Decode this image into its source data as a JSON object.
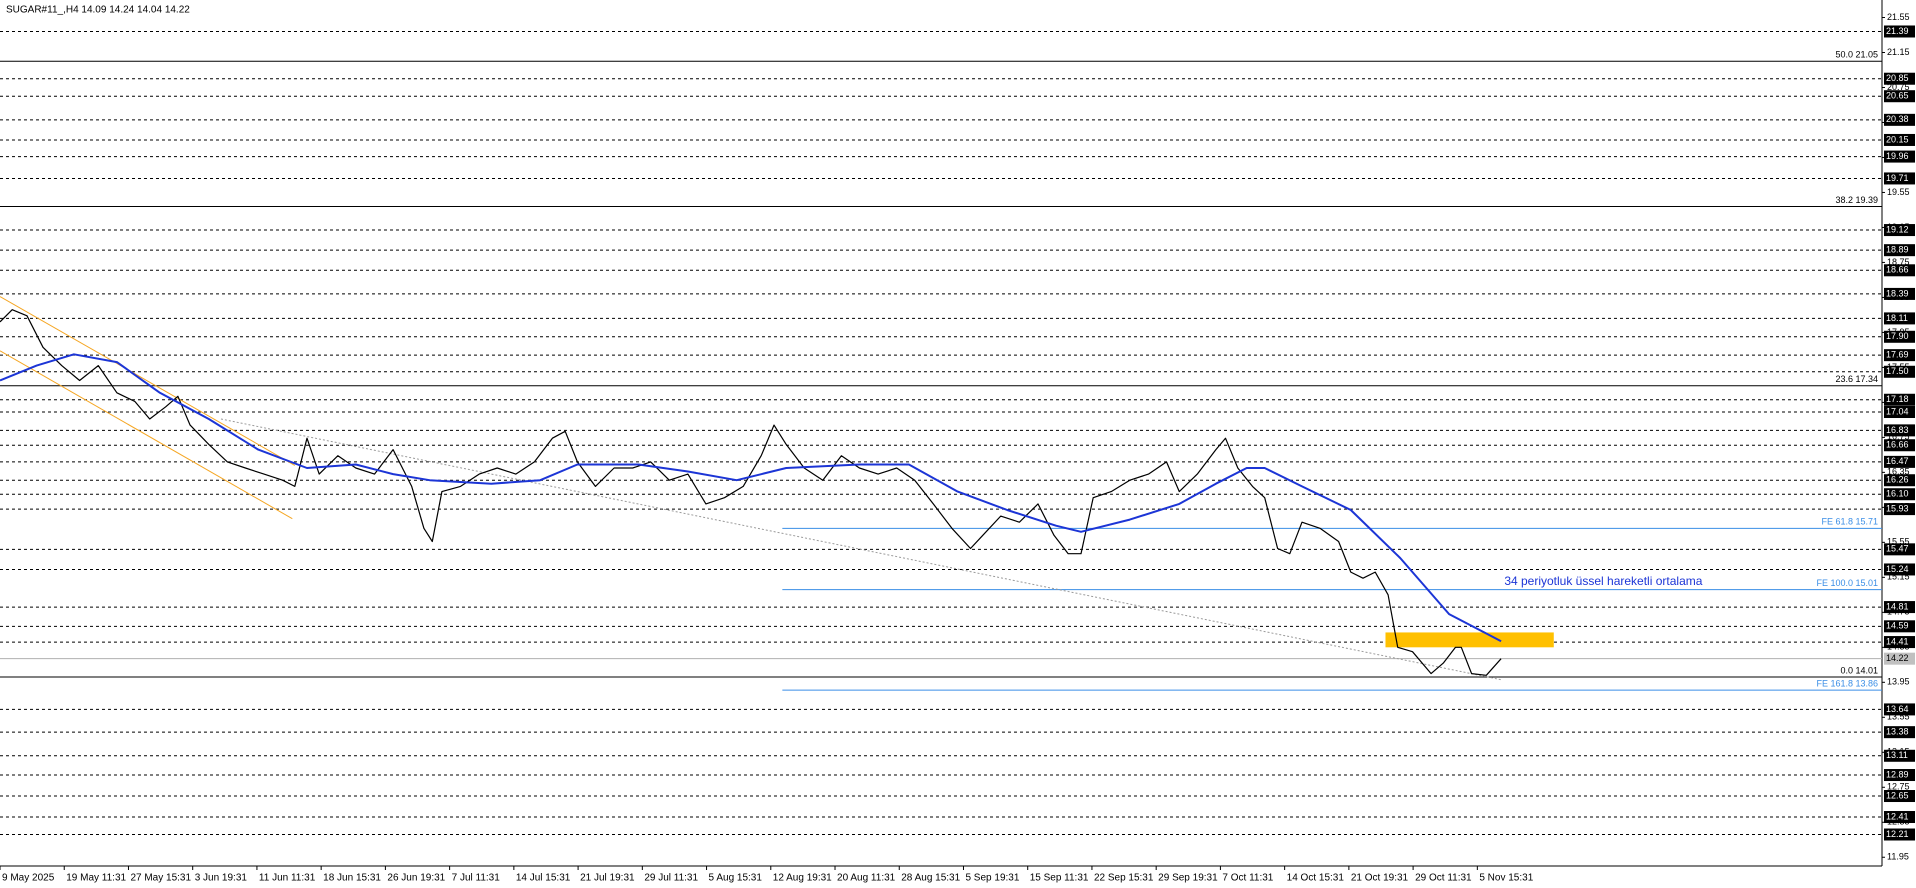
{
  "chart_data": {
    "type": "line",
    "title": "SUGAR#11_,H4  14.09 14.24 14.04 14.22",
    "xlim": [
      0,
      29.3
    ],
    "xticks": [
      {
        "value": 0,
        "label": "9 May 2025"
      },
      {
        "value": 1,
        "label": "19 May 11:31"
      },
      {
        "value": 2,
        "label": "27 May 15:31"
      },
      {
        "value": 3,
        "label": "3 Jun 19:31"
      },
      {
        "value": 4,
        "label": "11 Jun 11:31"
      },
      {
        "value": 5,
        "label": "18 Jun 15:31"
      },
      {
        "value": 6,
        "label": "26 Jun 19:31"
      },
      {
        "value": 7,
        "label": "7 Jul 11:31"
      },
      {
        "value": 8,
        "label": "14 Jul 15:31"
      },
      {
        "value": 9,
        "label": "21 Jul 19:31"
      },
      {
        "value": 10,
        "label": "29 Jul 11:31"
      },
      {
        "value": 11,
        "label": "5 Aug 15:31"
      },
      {
        "value": 12,
        "label": "12 Aug 19:31"
      },
      {
        "value": 13,
        "label": "20 Aug 11:31"
      },
      {
        "value": 14,
        "label": "28 Aug 15:31"
      },
      {
        "value": 15,
        "label": "5 Sep 19:31"
      },
      {
        "value": 16,
        "label": "15 Sep 11:31"
      },
      {
        "value": 17,
        "label": "22 Sep 15:31"
      },
      {
        "value": 18,
        "label": "29 Sep 19:31"
      },
      {
        "value": 19,
        "label": "7 Oct 11:31"
      },
      {
        "value": 20,
        "label": "14 Oct 15:31"
      },
      {
        "value": 21,
        "label": "21 Oct 19:31"
      },
      {
        "value": 22,
        "label": "29 Oct 11:31"
      },
      {
        "value": 23,
        "label": "5 Nov 15:31"
      }
    ],
    "ylim": [
      11.85,
      21.75
    ],
    "yticks": [
      21.55,
      21.15,
      20.75,
      20.35,
      19.95,
      19.55,
      19.15,
      18.75,
      18.35,
      17.95,
      17.55,
      17.15,
      16.75,
      16.35,
      15.95,
      15.55,
      15.15,
      14.75,
      14.35,
      13.95,
      13.55,
      13.15,
      12.75,
      12.35,
      11.95
    ],
    "grid": false,
    "series": [
      {
        "color": "#000000",
        "x": [
          0,
          0.19,
          0.42,
          0.67,
          0.96,
          1.24,
          1.53,
          1.82,
          2.1,
          2.33,
          2.58,
          2.77,
          2.96,
          3.25,
          3.54,
          3.82,
          4.11,
          4.4,
          4.59,
          4.78,
          4.97,
          5.26,
          5.54,
          5.83,
          6.12,
          6.41,
          6.6,
          6.73,
          6.88,
          7.17,
          7.46,
          7.74,
          8.03,
          8.32,
          8.6,
          8.8,
          8.99,
          9.27,
          9.56,
          9.85,
          10.13,
          10.42,
          10.71,
          10.99,
          11.28,
          11.57,
          11.85,
          12.05,
          12.24,
          12.52,
          12.81,
          13.1,
          13.38,
          13.67,
          13.96,
          14.24,
          14.53,
          14.82,
          15.11,
          15.3,
          15.58,
          15.87,
          16.16,
          16.41,
          16.63,
          16.83,
          17.02,
          17.3,
          17.59,
          17.88,
          18.16,
          18.36,
          18.64,
          18.93,
          19.08,
          19.27,
          19.5,
          19.69,
          19.89,
          20.08,
          20.27,
          20.55,
          20.84,
          21.03,
          21.22,
          21.41,
          21.61,
          21.76,
          21.99,
          22.28,
          22.47,
          22.66,
          22.75,
          22.91,
          23.14,
          23.37
        ],
        "values": [
          18.07,
          18.21,
          18.14,
          17.78,
          17.57,
          17.4,
          17.57,
          17.26,
          17.16,
          16.96,
          17.1,
          17.22,
          16.89,
          16.67,
          16.47,
          16.4,
          16.33,
          16.26,
          16.19,
          16.74,
          16.33,
          16.54,
          16.4,
          16.33,
          16.61,
          16.19,
          15.71,
          15.56,
          16.13,
          16.19,
          16.33,
          16.4,
          16.33,
          16.47,
          16.74,
          16.82,
          16.47,
          16.19,
          16.4,
          16.4,
          16.47,
          16.26,
          16.33,
          15.99,
          16.06,
          16.19,
          16.54,
          16.89,
          16.67,
          16.4,
          16.26,
          16.54,
          16.4,
          16.33,
          16.4,
          16.26,
          15.99,
          15.71,
          15.48,
          15.63,
          15.85,
          15.78,
          15.99,
          15.63,
          15.42,
          15.42,
          16.06,
          16.13,
          16.26,
          16.33,
          16.47,
          16.13,
          16.33,
          16.61,
          16.74,
          16.4,
          16.19,
          16.06,
          15.48,
          15.42,
          15.78,
          15.71,
          15.56,
          15.21,
          15.14,
          15.21,
          14.95,
          14.35,
          14.3,
          14.05,
          14.17,
          14.35,
          14.35,
          14.05,
          14.03,
          14.22
        ]
      },
      {
        "color": "#1c35d6",
        "x": [
          0,
          0.57,
          1.15,
          1.82,
          2.49,
          3.25,
          4.02,
          4.78,
          5.54,
          6.12,
          6.69,
          7.65,
          8.41,
          8.99,
          9.94,
          10.71,
          11.47,
          12.24,
          13.38,
          14.15,
          14.91,
          15.68,
          16.44,
          16.83,
          17.59,
          18.36,
          18.93,
          19.41,
          19.69,
          20.27,
          21.03,
          21.8,
          22.56,
          23.37
        ],
        "values": [
          17.4,
          17.57,
          17.7,
          17.61,
          17.26,
          16.96,
          16.61,
          16.4,
          16.44,
          16.33,
          16.26,
          16.22,
          16.26,
          16.44,
          16.44,
          16.36,
          16.26,
          16.4,
          16.44,
          16.44,
          16.13,
          15.92,
          15.74,
          15.67,
          15.81,
          15.99,
          16.22,
          16.4,
          16.4,
          16.19,
          15.92,
          15.37,
          14.73,
          14.42
        ]
      }
    ],
    "levels": [
      21.39,
      20.85,
      20.65,
      20.38,
      20.15,
      19.96,
      19.71,
      19.12,
      18.89,
      18.66,
      18.39,
      18.11,
      {
        "value": 17.9,
        "label": "17.90"
      },
      17.69,
      {
        "value": 17.5,
        "label": "17.50"
      },
      17.18,
      17.04,
      16.83,
      16.66,
      16.47,
      16.26,
      {
        "value": 16.1,
        "label": "16.10"
      },
      15.93,
      15.47,
      15.24,
      14.81,
      14.59,
      14.41,
      13.64,
      13.38,
      13.11,
      12.89,
      12.65,
      12.41,
      12.21
    ],
    "current_price": 14.22,
    "fibo": [
      {
        "label": "50.0 21.05",
        "value": 21.05
      },
      {
        "label": "38.2 19.39",
        "value": 19.39
      },
      {
        "label": "23.6 17.34",
        "value": 17.34
      },
      {
        "label": "0.0 14.01",
        "value": 14.01
      }
    ],
    "expansion": {
      "color": "#3a8ee6",
      "start": 12.18,
      "levels": [
        {
          "label": "FE 61.8 15.71",
          "value": 15.71
        },
        {
          "label": "FE 100.0 15.01",
          "value": 15.01
        },
        {
          "label": "FE 161.8 13.86",
          "value": 13.86
        }
      ]
    },
    "channel": {
      "color": "#f5a623",
      "lines": [
        {
          "x": [
            0,
            4.59
          ],
          "values": [
            18.36,
            16.43
          ]
        },
        {
          "x": [
            0,
            4.55
          ],
          "values": [
            17.74,
            15.82
          ]
        }
      ]
    },
    "trend_line": {
      "color": "#9a9a9a",
      "x": [
        3.44,
        23.37
      ],
      "values": [
        16.96,
        13.98
      ]
    },
    "zone": {
      "color": "#ffc000",
      "x": [
        21.57,
        24.19
      ],
      "values": [
        14.35,
        14.52
      ]
    },
    "annotation": {
      "text": "34 periyotluk üssel hareketli ortalama",
      "x": 23.42,
      "y": 15.1,
      "color": "#1c35d6"
    }
  }
}
